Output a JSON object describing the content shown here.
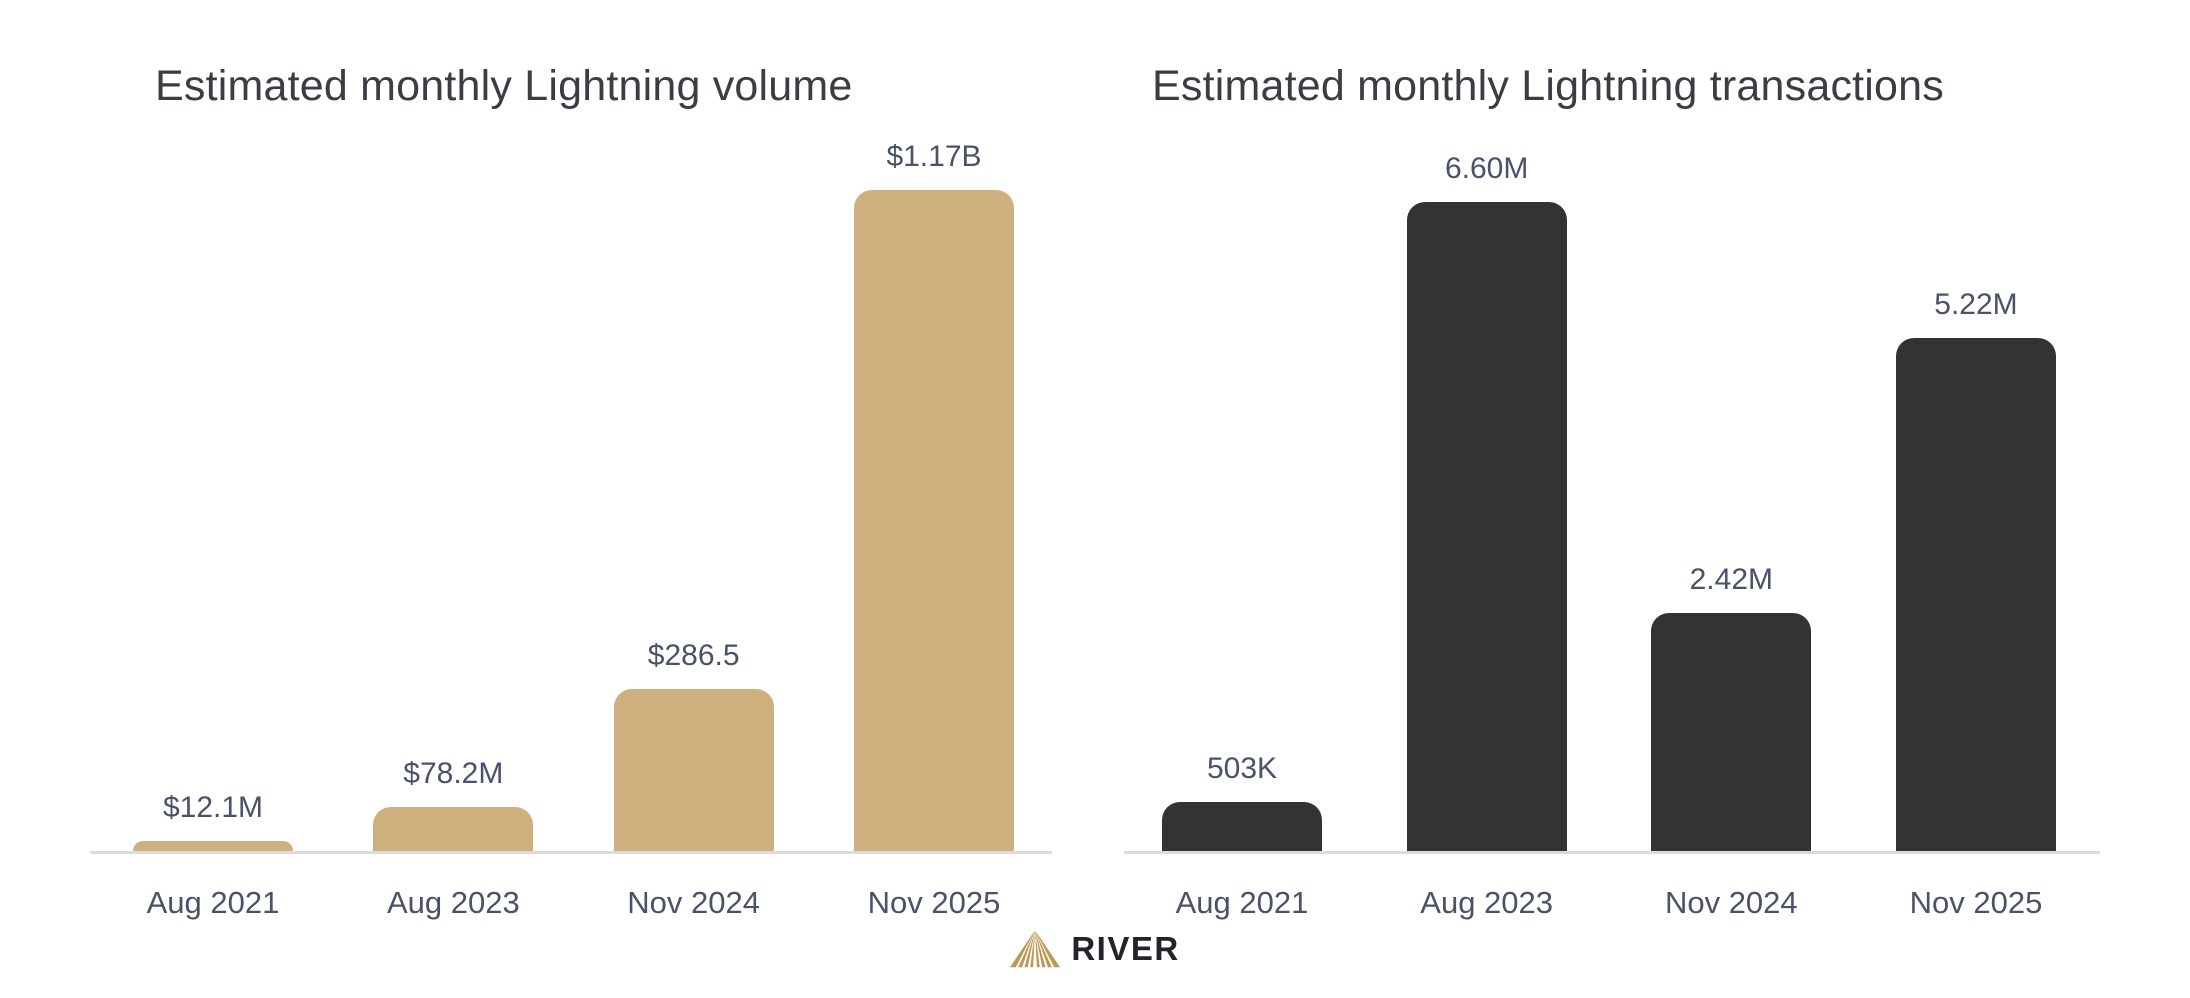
{
  "page_background": "#FFFFFF",
  "colors": {
    "title_text": "#3A3D44",
    "label_text": "#4A5169",
    "axis_line": "#DBDBDB",
    "gold_accent": "#CFAF7D",
    "dark_accent": "#333333"
  },
  "chart_data": [
    {
      "type": "bar",
      "title": "Estimated monthly Lightning volume",
      "categories": [
        "Aug 2021",
        "Aug 2023",
        "Nov 2024",
        "Nov 2025"
      ],
      "values": [
        12.1,
        78.2,
        286.5,
        1170
      ],
      "value_labels": [
        "$12.1M",
        "$78.2M",
        "$286.5",
        "$1.17B"
      ],
      "units": "USD millions (label $1.17B = 1170M)",
      "bar_color": "#CFAF7D",
      "ylim": [
        0,
        1170
      ],
      "grid": false,
      "legend": false,
      "xlabel": "",
      "ylabel": ""
    },
    {
      "type": "bar",
      "title": "Estimated monthly Lightning transactions",
      "categories": [
        "Aug 2021",
        "Aug 2023",
        "Nov 2024",
        "Nov 2025"
      ],
      "values": [
        0.503,
        6.6,
        2.42,
        5.22
      ],
      "value_labels": [
        "503K",
        "6.60M",
        "2.42M",
        "5.22M"
      ],
      "units": "millions of transactions",
      "bar_color": "#333333",
      "ylim": [
        0,
        6.6
      ],
      "grid": false,
      "legend": false,
      "xlabel": "",
      "ylabel": ""
    }
  ],
  "footer": {
    "brand": "RIVER",
    "logo_icon": "river-mountain-icon",
    "logo_color": "#BB9857",
    "brand_text_color": "#232329"
  }
}
